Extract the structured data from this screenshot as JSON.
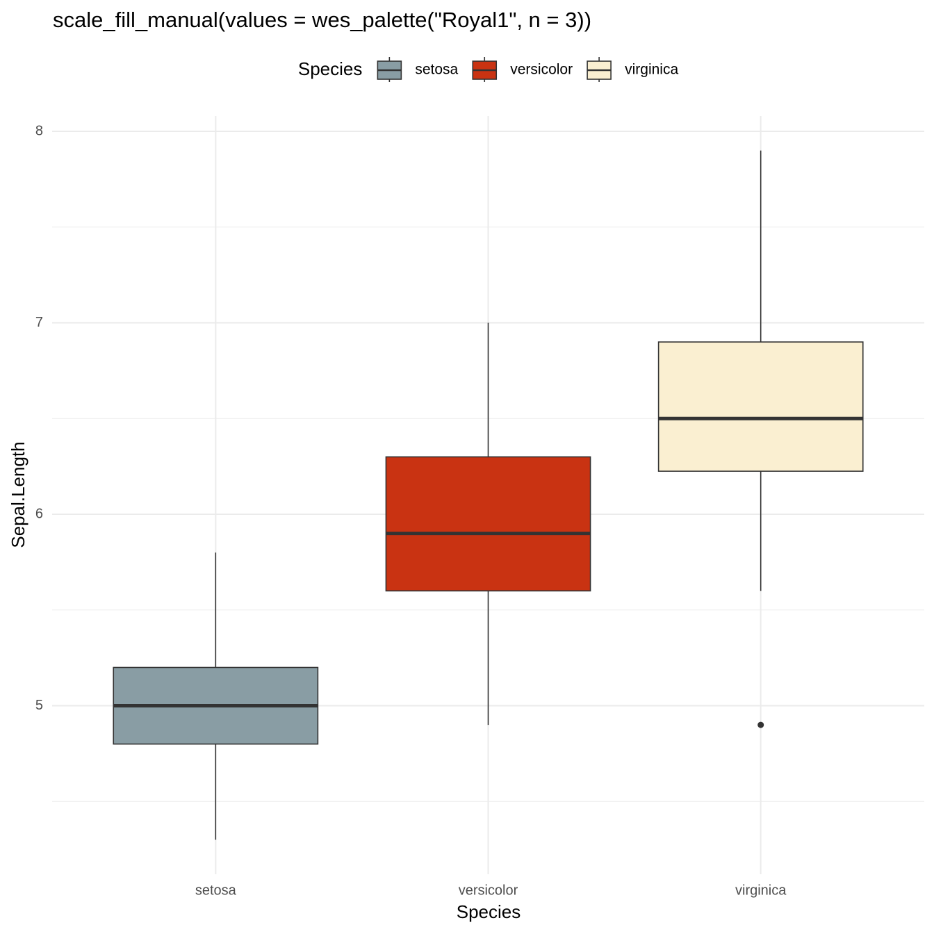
{
  "chart_data": {
    "type": "boxplot",
    "title": "scale_fill_manual(values = wes_palette(\"Royal1\", n = 3))",
    "legend_title": "Species",
    "legend_position": "top",
    "x_label": "Species",
    "y_label": "Sepal.Length",
    "categories": [
      "setosa",
      "versicolor",
      "virginica"
    ],
    "series": [
      {
        "name": "setosa",
        "color": "#899da4",
        "min": 4.3,
        "q1": 4.8,
        "median": 5.0,
        "q3": 5.2,
        "max": 5.8,
        "outliers": []
      },
      {
        "name": "versicolor",
        "color": "#c93312",
        "min": 4.9,
        "q1": 5.6,
        "median": 5.9,
        "q3": 6.3,
        "max": 7.0,
        "outliers": []
      },
      {
        "name": "virginica",
        "color": "#faefd1",
        "min": 5.6,
        "q1": 6.225,
        "median": 6.5,
        "q3": 6.9,
        "max": 7.9,
        "outliers": [
          4.9
        ]
      }
    ],
    "ylim": [
      4.12,
      8.08
    ],
    "yticks": [
      5,
      6,
      7,
      8
    ],
    "yminor": [
      4.5,
      5.5,
      6.5,
      7.5
    ],
    "grid": true
  }
}
